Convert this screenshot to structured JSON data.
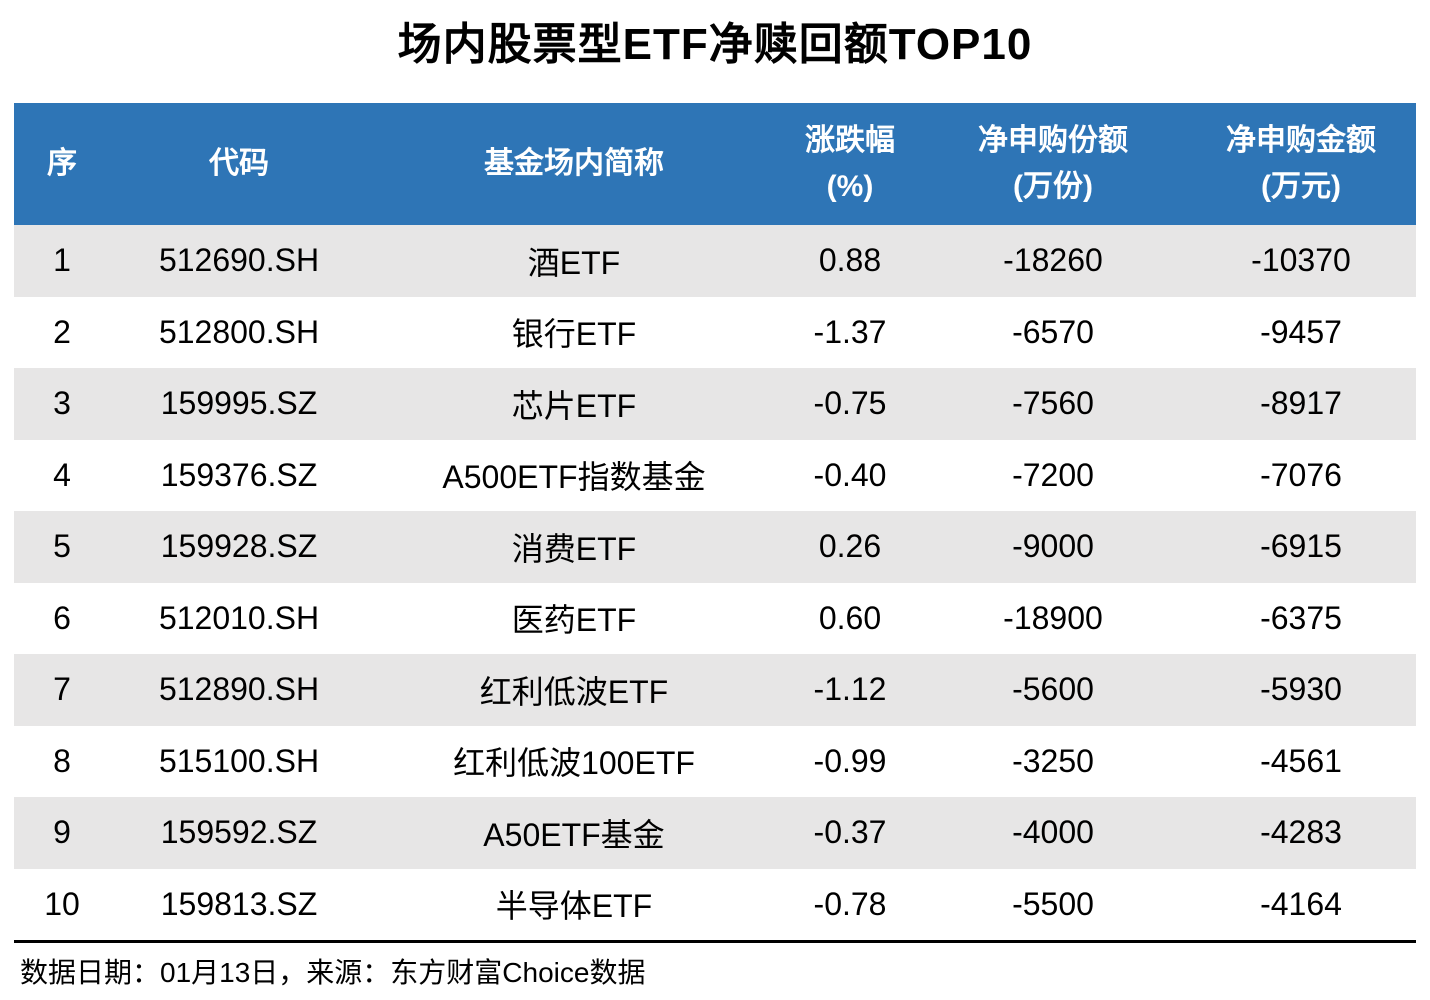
{
  "title": "场内股票型ETF净赎回额TOP10",
  "colors": {
    "header_bg": "#2E75B6",
    "header_text": "#FFFFFF",
    "row_alt_bg": "#E7E6E6",
    "row_bg": "#FFFFFF",
    "text": "#000000"
  },
  "footer": {
    "source_note": "数据日期：01月13日，来源：东方财富Choice数据"
  },
  "chart_data": {
    "type": "table",
    "title": "场内股票型ETF净赎回额TOP10",
    "columns": [
      {
        "id": "rank",
        "line1": "序",
        "line2": ""
      },
      {
        "id": "code",
        "line1": "代码",
        "line2": ""
      },
      {
        "id": "name",
        "line1": "基金场内简称",
        "line2": ""
      },
      {
        "id": "change_pct",
        "line1": "涨跌幅",
        "line2": "(%)"
      },
      {
        "id": "net_shares",
        "line1": "净申购份额",
        "line2": "(万份)"
      },
      {
        "id": "net_amount",
        "line1": "净申购金额",
        "line2": "(万元)"
      }
    ],
    "rows": [
      {
        "rank": "1",
        "code": "512690.SH",
        "name": "酒ETF",
        "change_pct": "0.88",
        "net_shares": "-18260",
        "net_amount": "-10370"
      },
      {
        "rank": "2",
        "code": "512800.SH",
        "name": "银行ETF",
        "change_pct": "-1.37",
        "net_shares": "-6570",
        "net_amount": "-9457"
      },
      {
        "rank": "3",
        "code": "159995.SZ",
        "name": "芯片ETF",
        "change_pct": "-0.75",
        "net_shares": "-7560",
        "net_amount": "-8917"
      },
      {
        "rank": "4",
        "code": "159376.SZ",
        "name": "A500ETF指数基金",
        "change_pct": "-0.40",
        "net_shares": "-7200",
        "net_amount": "-7076"
      },
      {
        "rank": "5",
        "code": "159928.SZ",
        "name": "消费ETF",
        "change_pct": "0.26",
        "net_shares": "-9000",
        "net_amount": "-6915"
      },
      {
        "rank": "6",
        "code": "512010.SH",
        "name": "医药ETF",
        "change_pct": "0.60",
        "net_shares": "-18900",
        "net_amount": "-6375"
      },
      {
        "rank": "7",
        "code": "512890.SH",
        "name": "红利低波ETF",
        "change_pct": "-1.12",
        "net_shares": "-5600",
        "net_amount": "-5930"
      },
      {
        "rank": "8",
        "code": "515100.SH",
        "name": "红利低波100ETF",
        "change_pct": "-0.99",
        "net_shares": "-3250",
        "net_amount": "-4561"
      },
      {
        "rank": "9",
        "code": "159592.SZ",
        "name": "A50ETF基金",
        "change_pct": "-0.37",
        "net_shares": "-4000",
        "net_amount": "-4283"
      },
      {
        "rank": "10",
        "code": "159813.SZ",
        "name": "半导体ETF",
        "change_pct": "-0.78",
        "net_shares": "-5500",
        "net_amount": "-4164"
      }
    ]
  }
}
